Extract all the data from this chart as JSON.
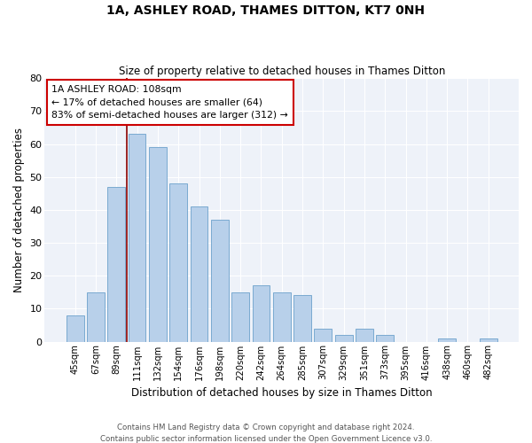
{
  "title": "1A, ASHLEY ROAD, THAMES DITTON, KT7 0NH",
  "subtitle": "Size of property relative to detached houses in Thames Ditton",
  "xlabel": "Distribution of detached houses by size in Thames Ditton",
  "ylabel": "Number of detached properties",
  "bar_color": "#b8d0ea",
  "bar_edge_color": "#7aaad0",
  "background_color": "#eef2f9",
  "grid_color": "#ffffff",
  "categories": [
    "45sqm",
    "67sqm",
    "89sqm",
    "111sqm",
    "132sqm",
    "154sqm",
    "176sqm",
    "198sqm",
    "220sqm",
    "242sqm",
    "264sqm",
    "285sqm",
    "307sqm",
    "329sqm",
    "351sqm",
    "373sqm",
    "395sqm",
    "416sqm",
    "438sqm",
    "460sqm",
    "482sqm"
  ],
  "values": [
    8,
    15,
    47,
    63,
    59,
    48,
    41,
    37,
    15,
    17,
    15,
    14,
    4,
    2,
    4,
    2,
    0,
    0,
    1,
    0,
    1
  ],
  "vline_x": 2.5,
  "vline_color": "#8b0000",
  "annotation_text": "1A ASHLEY ROAD: 108sqm\n← 17% of detached houses are smaller (64)\n83% of semi-detached houses are larger (312) →",
  "ylim": [
    0,
    80
  ],
  "yticks": [
    0,
    10,
    20,
    30,
    40,
    50,
    60,
    70,
    80
  ],
  "footer1": "Contains HM Land Registry data © Crown copyright and database right 2024.",
  "footer2": "Contains public sector information licensed under the Open Government Licence v3.0."
}
